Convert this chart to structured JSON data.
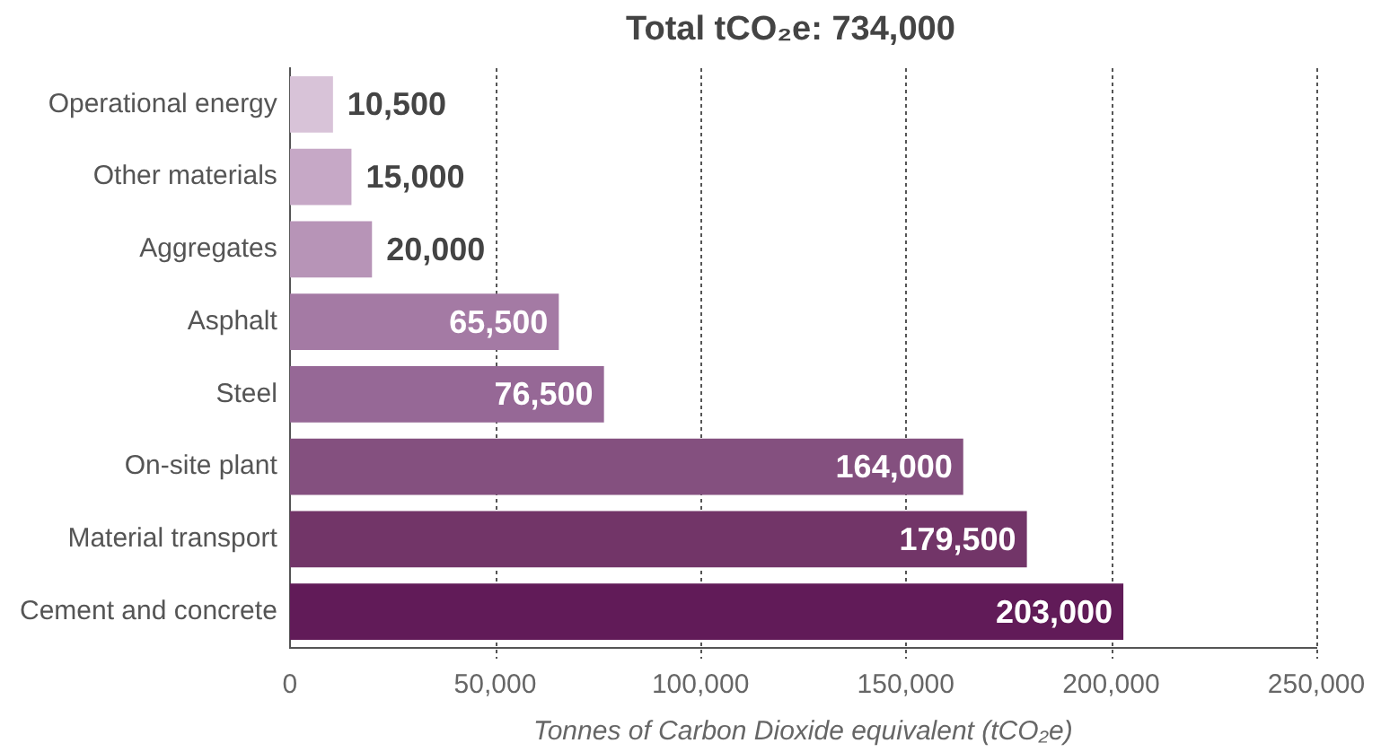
{
  "chart_data": {
    "type": "bar",
    "orientation": "horizontal",
    "title": "Total tCO₂e: 734,000",
    "xlabel": "Tonnes of Carbon Dioxide equivalent (tCO₂e)",
    "categories": [
      "Operational energy",
      "Other materials",
      "Aggregates",
      "Asphalt",
      "Steel",
      "On-site plant",
      "Material transport",
      "Cement and concrete"
    ],
    "values": [
      10500,
      15000,
      20000,
      65500,
      76500,
      164000,
      179500,
      203000
    ],
    "colors": [
      "#d8c3d8",
      "#c6a8c6",
      "#b794b7",
      "#a47aa4",
      "#966896",
      "#84507f",
      "#723568",
      "#611b58"
    ],
    "value_labels": [
      "10,500",
      "15,000",
      "20,000",
      "65,500",
      "76,500",
      "164,000",
      "179,500",
      "203,000"
    ],
    "xlim": [
      0,
      250000
    ],
    "xticks": [
      0,
      {
        "value": 50000,
        "label": "50,000"
      },
      {
        "value": 100000,
        "label": "100,000"
      },
      {
        "value": 150000,
        "label": "150,000"
      },
      {
        "value": 200000,
        "label": "200,000"
      },
      {
        "value": 250000,
        "label": "250,000"
      }
    ],
    "grid": "x",
    "legend": false
  }
}
